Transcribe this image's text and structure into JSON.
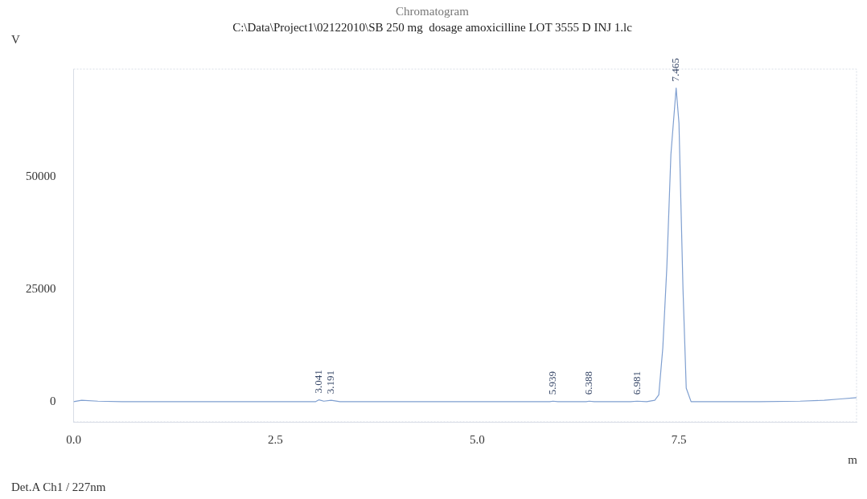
{
  "chart_data": {
    "type": "line",
    "title": "Chromatogram",
    "subtitle": "C:\\Data\\Project1\\02122010\\SB 250 mg  dosage amoxicilline LOT 3555 D INJ 1.lc",
    "xlabel": "m",
    "ylabel": "V",
    "xlim": [
      0,
      9.7
    ],
    "ylim": [
      -4500,
      74000
    ],
    "xticks": [
      {
        "value": 0,
        "label": "0.0"
      },
      {
        "value": 2.5,
        "label": "2.5"
      },
      {
        "value": 5,
        "label": "5.0"
      },
      {
        "value": 7.5,
        "label": "7.5"
      }
    ],
    "yticks": [
      0,
      25000,
      50000
    ],
    "grid": false,
    "marker": "none",
    "line_style": "solid",
    "series": [
      {
        "color": "#7f9fd0",
        "x": [
          0,
          0.1,
          0.3,
          0.6,
          1,
          1.5,
          2,
          2.5,
          2.9,
          3.0,
          3.041,
          3.1,
          3.191,
          3.3,
          3.6,
          4,
          4.5,
          5,
          5.5,
          5.9,
          5.939,
          6.0,
          6.35,
          6.388,
          6.45,
          6.9,
          6.981,
          7.1,
          7.2,
          7.25,
          7.3,
          7.35,
          7.4,
          7.465,
          7.5,
          7.55,
          7.59,
          7.65,
          7.8,
          8,
          8.5,
          9,
          9.3,
          9.5,
          9.7
        ],
        "values": [
          0,
          300,
          100,
          0,
          0,
          0,
          0,
          0,
          0,
          0,
          400,
          100,
          300,
          0,
          0,
          0,
          0,
          0,
          0,
          0,
          100,
          0,
          0,
          100,
          0,
          0,
          100,
          0,
          300,
          1500,
          12000,
          30000,
          55000,
          69800,
          62000,
          25000,
          3000,
          0,
          0,
          0,
          0,
          100,
          300,
          600,
          900
        ]
      }
    ],
    "annotations": [
      {
        "text": "3.041",
        "x": 3.041,
        "y": 400
      },
      {
        "text": "3.191",
        "x": 3.191,
        "y": 300
      },
      {
        "text": "5.939",
        "x": 5.939,
        "y": 100
      },
      {
        "text": "6.388",
        "x": 6.388,
        "y": 100
      },
      {
        "text": "6.981",
        "x": 6.981,
        "y": 100
      },
      {
        "text": "7.465",
        "x": 7.465,
        "y": 69800
      },
      "Det.A Ch1 / 227nm"
    ]
  }
}
